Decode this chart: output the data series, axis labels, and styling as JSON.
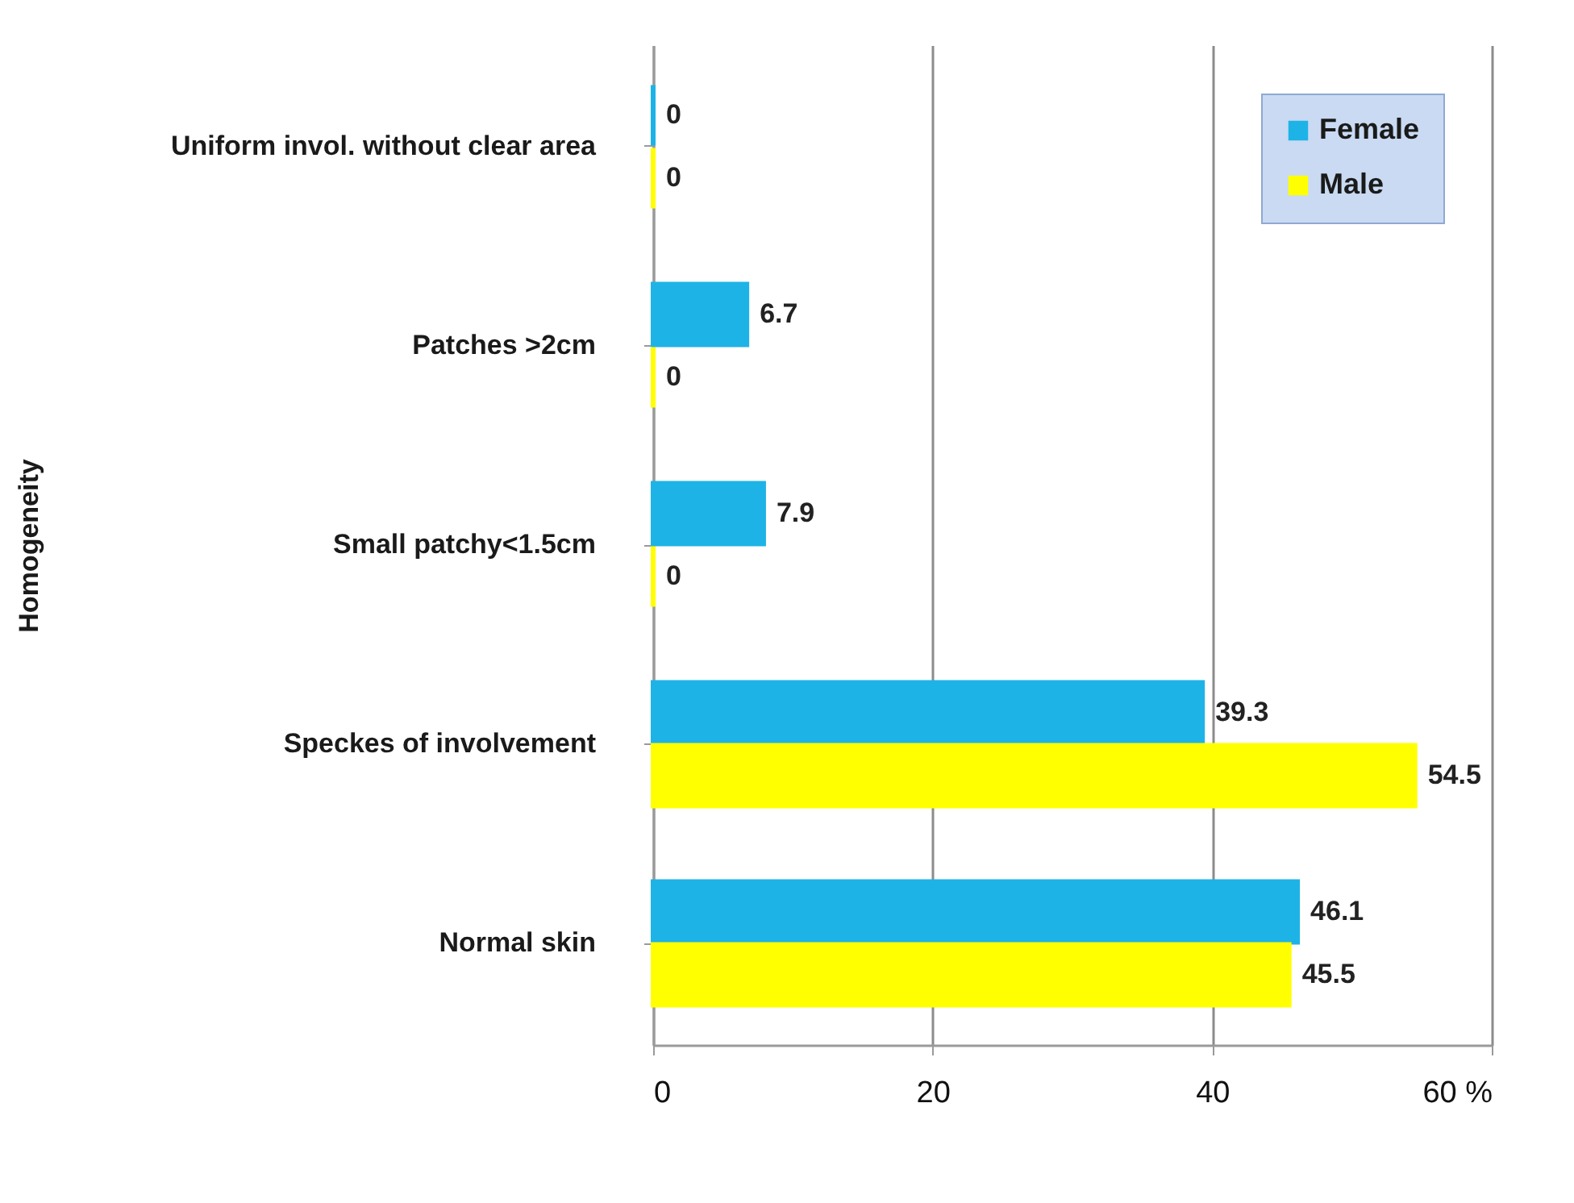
{
  "chart_data": {
    "type": "bar",
    "orientation": "horizontal",
    "ylabel": "Homogeneity",
    "categories": [
      "Uniform invol. without clear area",
      "Patches >2cm",
      "Small patchy<1.5cm",
      "Speckes of involvement",
      "Normal skin"
    ],
    "series": [
      {
        "name": "Female",
        "color": "#1eb3e6",
        "values": [
          0,
          6.7,
          7.9,
          39.3,
          46.1
        ]
      },
      {
        "name": "Male",
        "color": "#ffff00",
        "values": [
          0,
          0,
          0,
          54.5,
          45.5
        ]
      }
    ],
    "xlim": [
      0,
      60
    ],
    "xticks": [
      0,
      20,
      40,
      {
        "value": 60,
        "label": "60 %"
      }
    ],
    "grid": "x",
    "legend": "top right",
    "data_labels": true
  }
}
